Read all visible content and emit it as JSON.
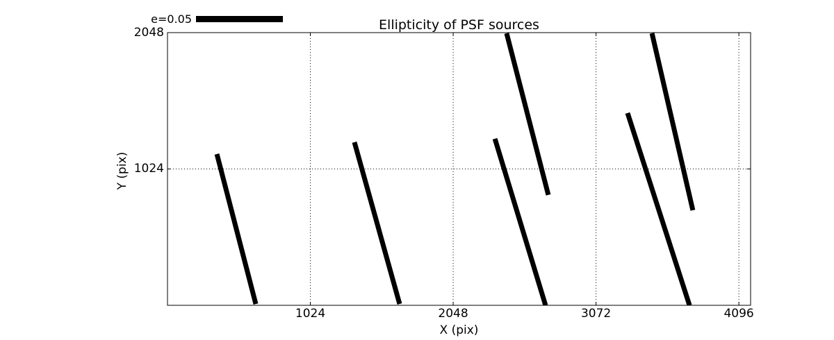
{
  "figure": {
    "background_color": "#ffffff",
    "foreground_color": "#000000"
  },
  "chart_data": {
    "type": "line",
    "title": "Ellipticity of PSF sources",
    "xlabel": "X (pix)",
    "ylabel": "Y (pix)",
    "xlim": [
      0,
      4180
    ],
    "ylim": [
      0,
      2048
    ],
    "xticks": [
      1024,
      2048,
      3072,
      4096
    ],
    "yticks": [
      1024,
      2048
    ],
    "xtick_labels": [
      "1024",
      "2048",
      "3072",
      "4096"
    ],
    "ytick_labels": [
      "1024",
      "2048"
    ],
    "grid": true,
    "grid_style": "dotted",
    "legend": {
      "label": "e=0.05",
      "position": "top-left-above-axes"
    },
    "series_color": "#000000",
    "segments": [
      {
        "x1": 354,
        "y1": 1136,
        "x2": 633,
        "y2": 10
      },
      {
        "x1": 1340,
        "y1": 1225,
        "x2": 1664,
        "y2": 10
      },
      {
        "x1": 2347,
        "y1": 1251,
        "x2": 2710,
        "y2": 0
      },
      {
        "x1": 2431,
        "y1": 2043,
        "x2": 2730,
        "y2": 829
      },
      {
        "x1": 3298,
        "y1": 1444,
        "x2": 3742,
        "y2": 0
      },
      {
        "x1": 3473,
        "y1": 2043,
        "x2": 3766,
        "y2": 714
      }
    ]
  }
}
